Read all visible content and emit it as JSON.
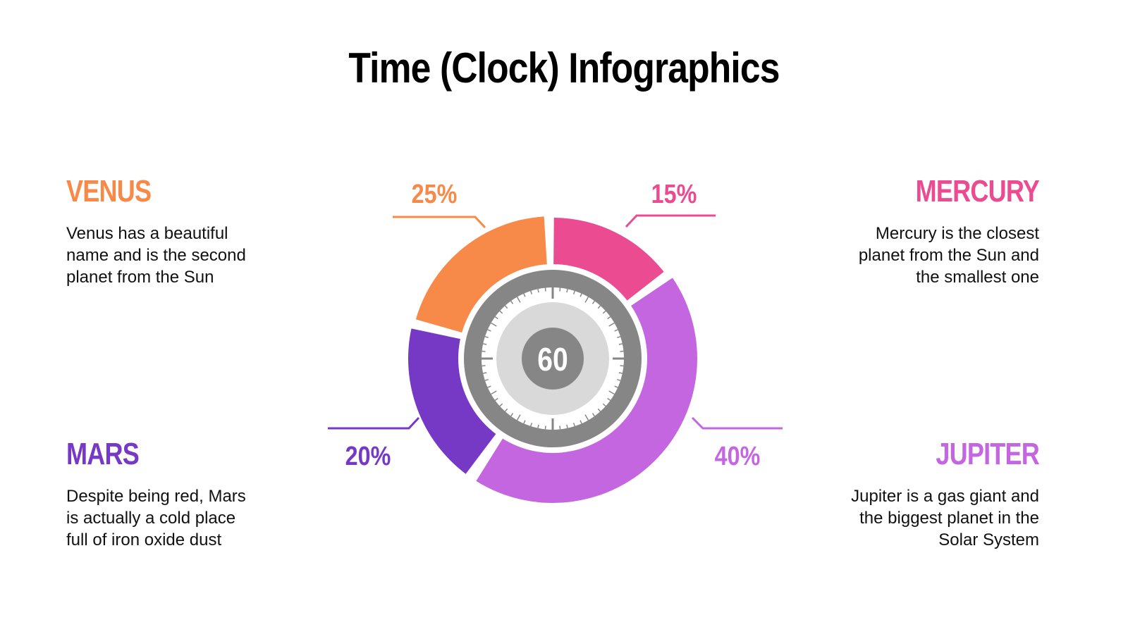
{
  "title": "Time (Clock) Infographics",
  "center": {
    "label": "60"
  },
  "colors": {
    "venus": "#F78A48",
    "mercury": "#EA4B91",
    "mars": "#7639C6",
    "jupiter": "#C566E1",
    "dial_ring": "#868686",
    "dial_face": "#FFFFFF",
    "dial_inner": "#D9D9D9",
    "dial_hub": "#868686"
  },
  "planets": [
    {
      "id": "venus",
      "name": "VENUS",
      "percent": "25%",
      "description": [
        "Venus has a beautiful",
        "name and is the second",
        "planet from the Sun"
      ]
    },
    {
      "id": "mercury",
      "name": "MERCURY",
      "percent": "15%",
      "description": [
        "Mercury is the closest",
        "planet from the Sun and",
        "the smallest one"
      ]
    },
    {
      "id": "mars",
      "name": "MARS",
      "percent": "20%",
      "description": [
        "Despite being red, Mars",
        "is actually a cold place",
        "full of iron oxide dust"
      ]
    },
    {
      "id": "jupiter",
      "name": "JUPITER",
      "percent": "40%",
      "description": [
        "Jupiter is a gas giant and",
        "the biggest planet in the",
        "Solar System"
      ]
    }
  ],
  "chart_data": {
    "type": "pie",
    "variant": "donut with clock dial center",
    "title": "Time (Clock) Infographics",
    "center_label": "60",
    "categories": [
      "Mercury",
      "Jupiter",
      "Mars",
      "Venus"
    ],
    "values": [
      15,
      40,
      20,
      25
    ],
    "labels": [
      "15%",
      "40%",
      "20%",
      "25%"
    ],
    "colors": [
      "#EA4B91",
      "#C566E1",
      "#7639C6",
      "#F78A48"
    ],
    "order": "clockwise from 12 o'clock",
    "legend": "text blocks in four corners (Venus top-left, Mercury top-right, Mars bottom-left, Jupiter bottom-right)"
  }
}
